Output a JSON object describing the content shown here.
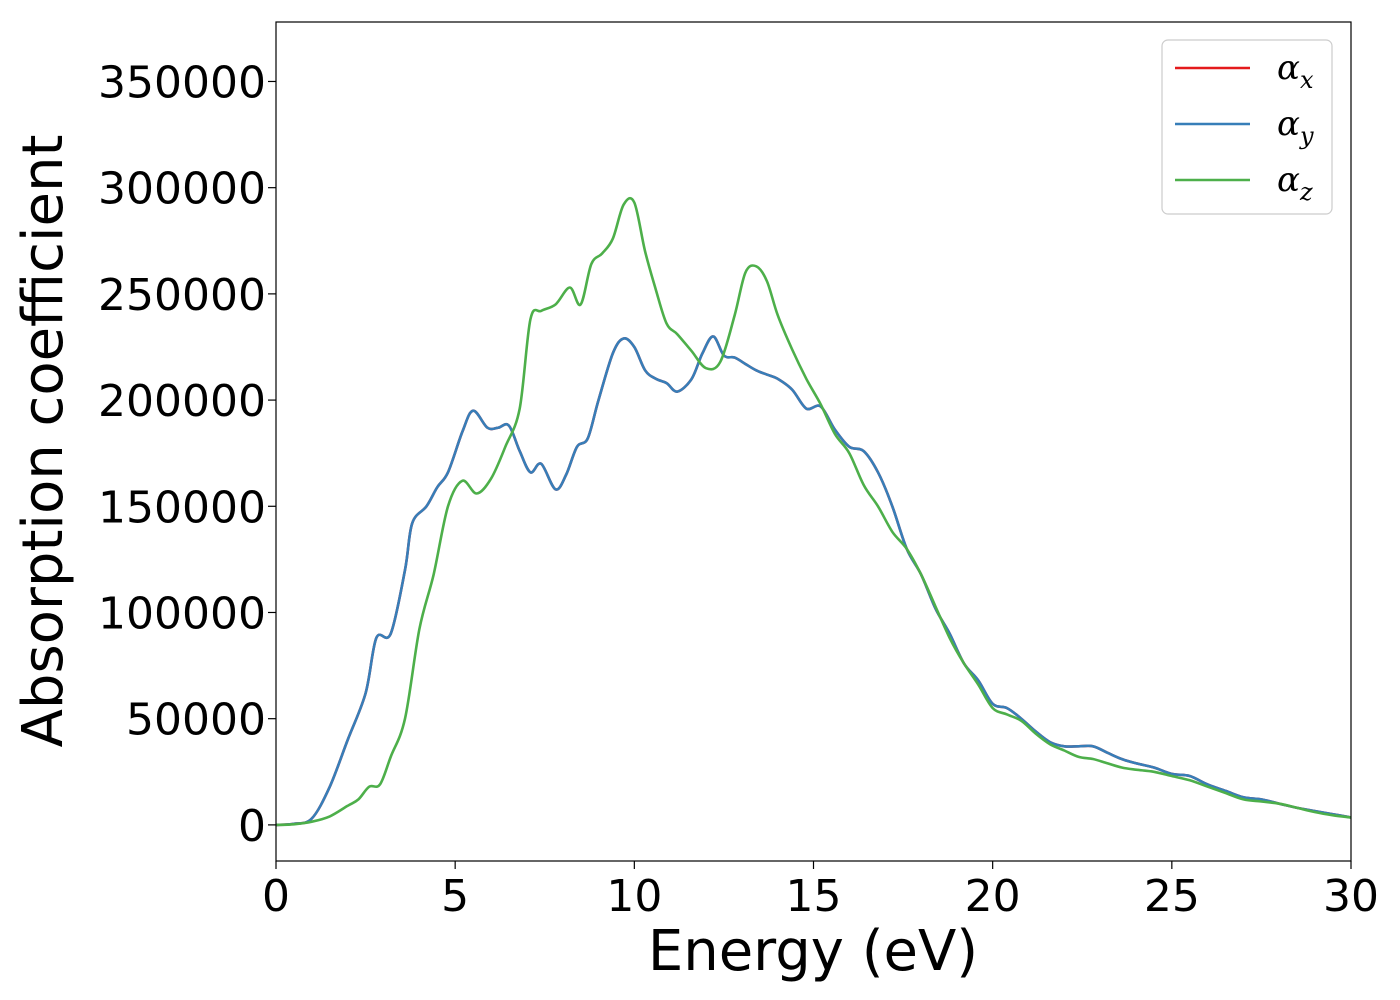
{
  "chart_data": {
    "type": "line",
    "title": "",
    "xlabel": "Energy (eV)",
    "ylabel": "Absorption coefficient",
    "xlim": [
      0,
      30
    ],
    "ylim": [
      -17000,
      378000
    ],
    "xticks": [
      0,
      5,
      10,
      15,
      20,
      25,
      30
    ],
    "xtick_labels": [
      "0",
      "5",
      "10",
      "15",
      "20",
      "25",
      "30"
    ],
    "yticks": [
      0,
      50000,
      100000,
      150000,
      200000,
      250000,
      300000,
      350000
    ],
    "ytick_labels": [
      "0",
      "50000",
      "100000",
      "150000",
      "200000",
      "250000",
      "300000",
      "350000"
    ],
    "grid": false,
    "legend_position": "top-right",
    "series": [
      {
        "name": "α_x",
        "symbol": "α",
        "subscript": "x",
        "color": "#e41a1c",
        "x": [
          0,
          0.5,
          1,
          1.5,
          2,
          2.5,
          2.8,
          3.2,
          3.6,
          3.8,
          4.2,
          4.5,
          4.8,
          5.2,
          5.5,
          5.9,
          6.2,
          6.5,
          6.8,
          7.1,
          7.4,
          7.8,
          8.1,
          8.4,
          8.7,
          9.0,
          9.4,
          9.7,
          10.0,
          10.3,
          10.6,
          10.9,
          11.2,
          11.6,
          11.9,
          12.2,
          12.5,
          12.8,
          13.1,
          13.4,
          13.7,
          14.0,
          14.4,
          14.8,
          15.2,
          15.6,
          16.0,
          16.4,
          16.8,
          17.2,
          17.6,
          18.0,
          18.4,
          18.8,
          19.2,
          19.6,
          20.0,
          20.4,
          20.8,
          21.2,
          21.6,
          22.0,
          22.4,
          22.8,
          23.2,
          23.6,
          24.0,
          24.5,
          25.0,
          25.5,
          26.0,
          26.5,
          27.0,
          27.5,
          28.0,
          28.5,
          29.0,
          29.5,
          30
        ],
        "y": [
          0,
          500,
          3000,
          18000,
          40000,
          62000,
          88000,
          90000,
          120000,
          142000,
          150000,
          159000,
          166000,
          185000,
          195000,
          187000,
          187000,
          188000,
          176000,
          166000,
          170000,
          158000,
          165000,
          178000,
          182000,
          200000,
          222000,
          229000,
          225000,
          214000,
          210000,
          208000,
          204000,
          210000,
          222000,
          230000,
          221000,
          220000,
          217000,
          214000,
          212000,
          210000,
          205000,
          196000,
          197000,
          186000,
          178000,
          176000,
          166000,
          150000,
          130000,
          118000,
          102000,
          90000,
          76000,
          68000,
          57000,
          55000,
          50000,
          44000,
          39000,
          37000,
          37000,
          37000,
          34000,
          31000,
          29000,
          27000,
          24000,
          23000,
          19000,
          16000,
          13000,
          12000,
          10000,
          8000,
          6500,
          5000,
          3500
        ]
      },
      {
        "name": "α_y",
        "symbol": "α",
        "subscript": "y",
        "color": "#377eb8",
        "x": [
          0,
          0.5,
          1,
          1.5,
          2,
          2.5,
          2.8,
          3.2,
          3.6,
          3.8,
          4.2,
          4.5,
          4.8,
          5.2,
          5.5,
          5.9,
          6.2,
          6.5,
          6.8,
          7.1,
          7.4,
          7.8,
          8.1,
          8.4,
          8.7,
          9.0,
          9.4,
          9.7,
          10.0,
          10.3,
          10.6,
          10.9,
          11.2,
          11.6,
          11.9,
          12.2,
          12.5,
          12.8,
          13.1,
          13.4,
          13.7,
          14.0,
          14.4,
          14.8,
          15.2,
          15.6,
          16.0,
          16.4,
          16.8,
          17.2,
          17.6,
          18.0,
          18.4,
          18.8,
          19.2,
          19.6,
          20.0,
          20.4,
          20.8,
          21.2,
          21.6,
          22.0,
          22.4,
          22.8,
          23.2,
          23.6,
          24.0,
          24.5,
          25.0,
          25.5,
          26.0,
          26.5,
          27.0,
          27.5,
          28.0,
          28.5,
          29.0,
          29.5,
          30
        ],
        "y": [
          0,
          500,
          3000,
          18000,
          40000,
          62000,
          88000,
          90000,
          120000,
          142000,
          150000,
          159000,
          166000,
          185000,
          195000,
          187000,
          187000,
          188000,
          176000,
          166000,
          170000,
          158000,
          165000,
          178000,
          182000,
          200000,
          222000,
          229000,
          225000,
          214000,
          210000,
          208000,
          204000,
          210000,
          222000,
          230000,
          221000,
          220000,
          217000,
          214000,
          212000,
          210000,
          205000,
          196000,
          197000,
          186000,
          178000,
          176000,
          166000,
          150000,
          130000,
          118000,
          102000,
          90000,
          76000,
          68000,
          57000,
          55000,
          50000,
          44000,
          39000,
          37000,
          37000,
          37000,
          34000,
          31000,
          29000,
          27000,
          24000,
          23000,
          19000,
          16000,
          13000,
          12000,
          10000,
          8000,
          6500,
          5000,
          3500
        ]
      },
      {
        "name": "α_z",
        "symbol": "α",
        "subscript": "z",
        "color": "#4daf4a",
        "x": [
          0,
          0.5,
          1,
          1.5,
          2,
          2.3,
          2.6,
          2.9,
          3.2,
          3.6,
          4.0,
          4.4,
          4.8,
          5.2,
          5.6,
          6.0,
          6.4,
          6.8,
          7.1,
          7.4,
          7.8,
          8.2,
          8.5,
          8.8,
          9.1,
          9.4,
          9.7,
          10.0,
          10.3,
          10.6,
          10.9,
          11.2,
          11.6,
          12.0,
          12.4,
          12.8,
          13.1,
          13.4,
          13.7,
          14.0,
          14.4,
          14.8,
          15.2,
          15.6,
          16.0,
          16.4,
          16.8,
          17.2,
          17.6,
          18.0,
          18.4,
          18.8,
          19.2,
          19.6,
          20.0,
          20.4,
          20.8,
          21.2,
          21.6,
          22.0,
          22.4,
          22.8,
          23.2,
          23.6,
          24.0,
          24.5,
          25.0,
          25.5,
          26.0,
          26.5,
          27.0,
          27.5,
          28.0,
          28.5,
          29.0,
          29.5,
          30
        ],
        "y": [
          0,
          300,
          1500,
          4000,
          9000,
          12000,
          18000,
          19000,
          32000,
          50000,
          92000,
          118000,
          150000,
          162000,
          156000,
          163000,
          178000,
          196000,
          238000,
          242000,
          245000,
          253000,
          245000,
          264000,
          269000,
          276000,
          292000,
          293000,
          270000,
          252000,
          236000,
          231000,
          223000,
          215000,
          218000,
          240000,
          260000,
          263000,
          256000,
          240000,
          224000,
          210000,
          198000,
          184000,
          175000,
          160000,
          150000,
          138000,
          130000,
          118000,
          103000,
          88000,
          76000,
          66000,
          55000,
          52000,
          49000,
          43000,
          38000,
          35000,
          32000,
          31000,
          29000,
          27000,
          26000,
          25000,
          23000,
          21000,
          18000,
          15000,
          12000,
          11000,
          10000,
          8000,
          6000,
          4500,
          3500
        ]
      }
    ]
  }
}
